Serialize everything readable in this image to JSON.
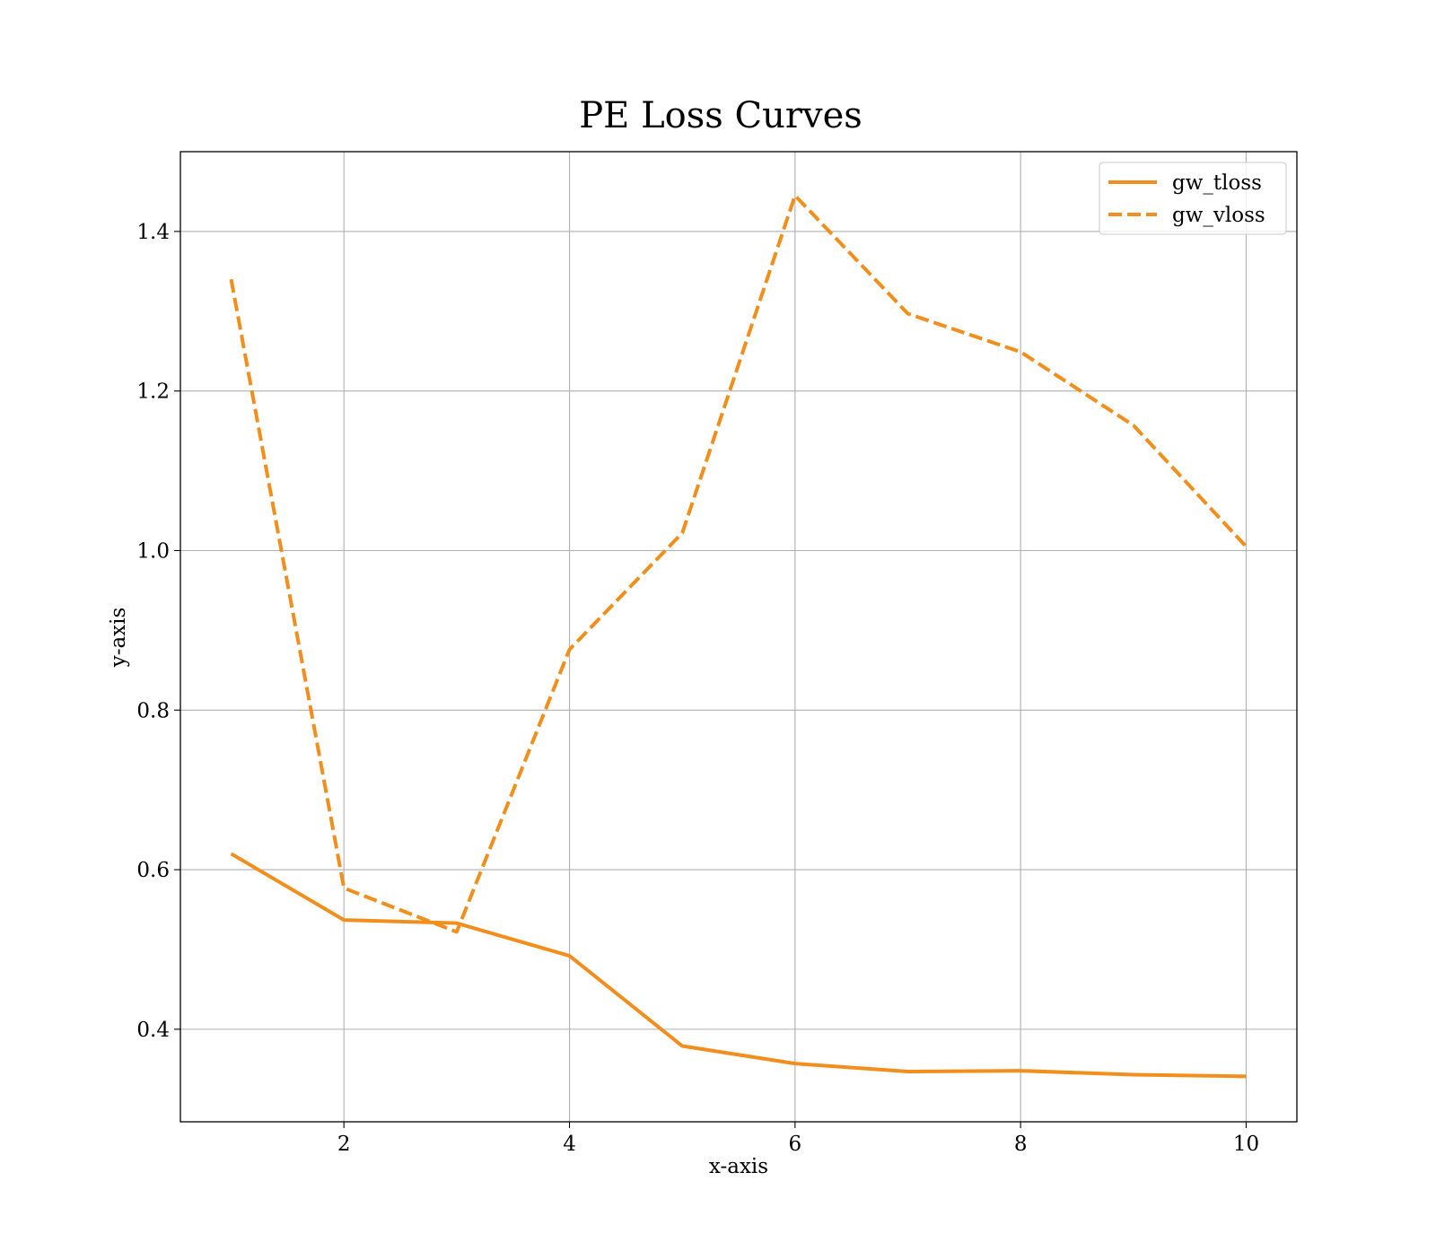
{
  "chart_data": {
    "type": "line",
    "title": "PE Loss Curves",
    "xlabel": "x-axis",
    "ylabel": "y-axis",
    "x": [
      1,
      2,
      3,
      4,
      5,
      6,
      7,
      8,
      9,
      10
    ],
    "xlim": [
      0.55,
      10.45
    ],
    "ylim": [
      0.284,
      1.5
    ],
    "xticks": [
      2,
      4,
      6,
      8,
      10
    ],
    "yticks": [
      0.4,
      0.6,
      0.8,
      1.0,
      1.2,
      1.4
    ],
    "xtick_labels": [
      "2",
      "4",
      "6",
      "8",
      "10"
    ],
    "ytick_labels": [
      "0.4",
      "0.6",
      "0.8",
      "1.0",
      "1.2",
      "1.4"
    ],
    "grid": true,
    "legend": "top-right",
    "series": [
      {
        "name": "gw_tloss",
        "values": [
          0.62,
          0.537,
          0.533,
          0.492,
          0.379,
          0.357,
          0.347,
          0.348,
          0.343,
          0.341
        ],
        "color": "#f28e1c",
        "style": "solid"
      },
      {
        "name": "gw_vloss",
        "values": [
          1.34,
          0.577,
          0.522,
          0.876,
          1.022,
          1.445,
          1.297,
          1.249,
          1.157,
          1.005
        ],
        "color": "#f28e1c",
        "style": "dashed"
      }
    ]
  }
}
